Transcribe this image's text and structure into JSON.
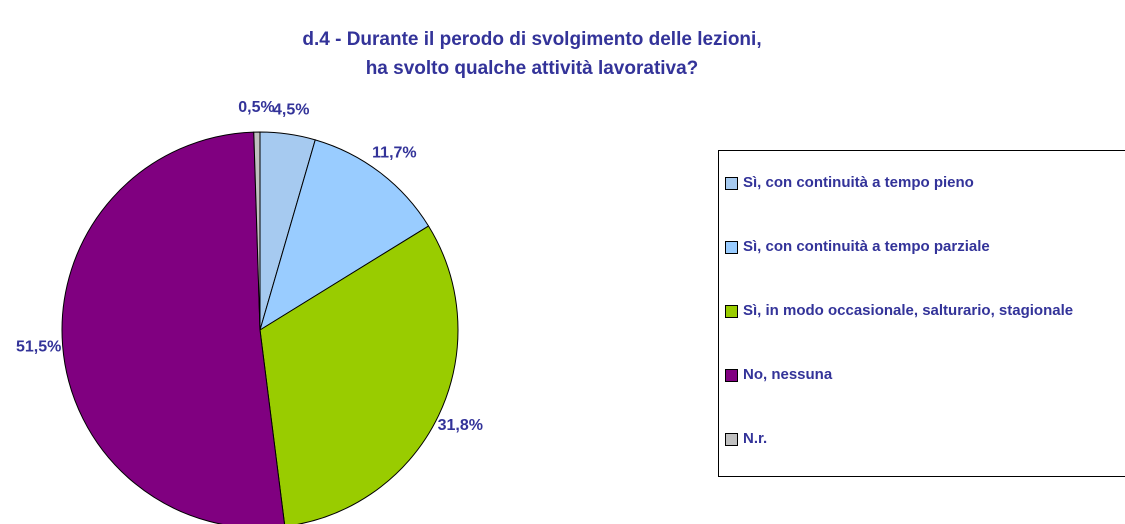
{
  "chart_data": {
    "type": "pie",
    "title": [
      "d.4 - Durante il perodo di svolgimento delle lezioni,",
      "ha svolto qualche attività lavorativa?"
    ],
    "categories": [
      "Sì, con continuità a tempo pieno",
      "Sì, con continuità a tempo parziale",
      "Sì, in modo occasionale, salturario, stagionale",
      "No, nessuna",
      "N.r."
    ],
    "values": [
      4.5,
      11.7,
      31.8,
      51.5,
      0.5
    ],
    "value_labels": [
      "4,5%",
      "11,7%",
      "31,8%",
      "51,5%",
      "0,5%"
    ],
    "colors": [
      "#A6CAF0",
      "#99CCFF",
      "#99CC00",
      "#800080",
      "#C0C0C0"
    ],
    "legend": "right"
  }
}
